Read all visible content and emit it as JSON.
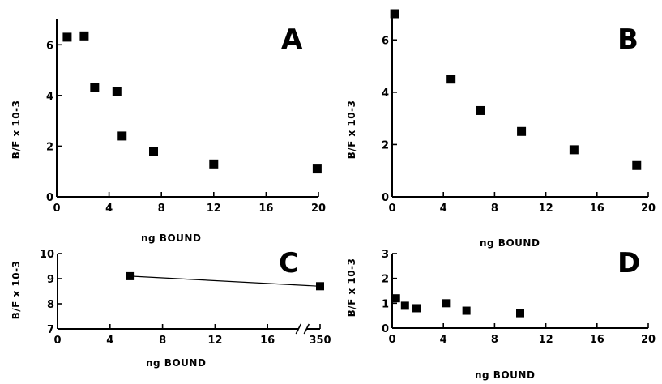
{
  "chart_data": [
    {
      "panel": "A",
      "type": "scatter",
      "xlabel": "ng BOUND",
      "ylabel": "B/F x 10-3",
      "xlim": [
        0,
        20
      ],
      "ylim": [
        0,
        7
      ],
      "xticks": [
        0,
        4,
        8,
        12,
        16,
        20
      ],
      "yticks": [
        0,
        2,
        4,
        6
      ],
      "x": [
        0.8,
        2.1,
        2.9,
        4.6,
        5.0,
        7.4,
        12.0,
        19.9
      ],
      "y": [
        6.3,
        6.35,
        4.3,
        4.15,
        2.4,
        1.8,
        1.3,
        1.1
      ],
      "grid": false,
      "series": [
        {
          "values": [
            6.3,
            6.35,
            4.3,
            4.15,
            2.4,
            1.8,
            1.3,
            1.1
          ]
        }
      ]
    },
    {
      "panel": "B",
      "type": "scatter",
      "xlabel": "ng BOUND",
      "ylabel": "B/F x 10-3",
      "xlim": [
        0,
        20
      ],
      "ylim": [
        0,
        7
      ],
      "xticks": [
        0,
        4,
        8,
        12,
        16,
        20
      ],
      "yticks": [
        0,
        2,
        4,
        6
      ],
      "x": [
        0.2,
        4.6,
        6.9,
        10.1,
        14.2,
        19.1
      ],
      "y": [
        7.0,
        4.5,
        3.3,
        2.5,
        1.8,
        1.2
      ],
      "grid": false,
      "series": [
        {
          "values": [
            7.0,
            4.5,
            3.3,
            2.5,
            1.8,
            1.2
          ]
        }
      ]
    },
    {
      "panel": "C",
      "type": "line",
      "xlabel": "ng BOUND",
      "ylabel": "B/F x 10-3",
      "xlim": [
        0,
        350
      ],
      "ylim": [
        7,
        10
      ],
      "xticks": [
        "0",
        "4",
        "8",
        "12",
        "16",
        "350"
      ],
      "yticks": [
        7,
        8,
        9,
        10
      ],
      "axis_break": "between 16 and 350",
      "x": [
        5.5,
        350
      ],
      "y": [
        9.1,
        8.7
      ],
      "grid": false,
      "series": [
        {
          "values": [
            9.1,
            8.7
          ]
        }
      ]
    },
    {
      "panel": "D",
      "type": "scatter",
      "xlabel": "ng BOUND",
      "ylabel": "B/F x 10-3",
      "xlim": [
        0,
        20
      ],
      "ylim": [
        0,
        3
      ],
      "xticks": [
        0,
        4,
        8,
        12,
        16,
        20
      ],
      "yticks": [
        0,
        1,
        2,
        3
      ],
      "x": [
        0.3,
        1.0,
        1.9,
        4.2,
        5.8,
        10.0
      ],
      "y": [
        1.2,
        0.9,
        0.8,
        1.0,
        0.7,
        0.6
      ],
      "grid": false,
      "series": [
        {
          "values": [
            1.2,
            0.9,
            0.8,
            1.0,
            0.7,
            0.6
          ]
        }
      ]
    }
  ],
  "panels": {
    "a": {
      "letter": "A",
      "xlabel": "ng BOUND",
      "ylabel": "B/F x 10-3"
    },
    "b": {
      "letter": "B",
      "xlabel": "ng BOUND",
      "ylabel": "B/F x 10-3"
    },
    "c": {
      "letter": "C",
      "xlabel": "ng BOUND",
      "ylabel": "B/F x 10-3"
    },
    "d": {
      "letter": "D",
      "xlabel": "ng BOUND",
      "ylabel": "B/F x 10-3"
    }
  }
}
